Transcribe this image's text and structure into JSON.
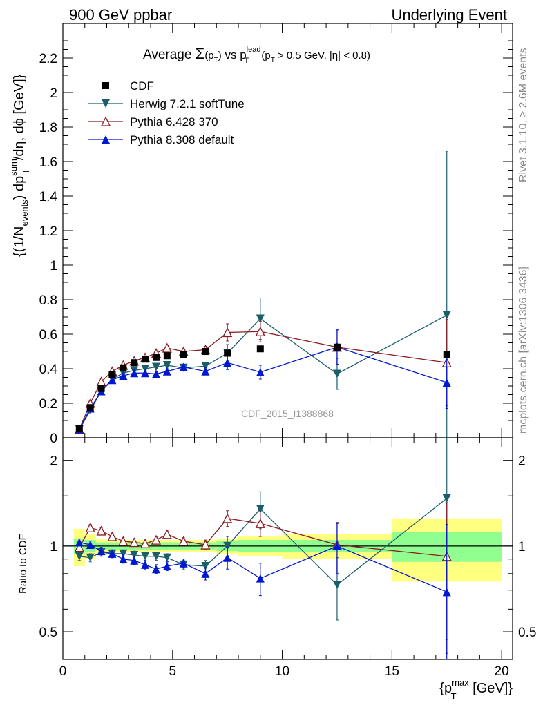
{
  "header": {
    "left": "900 GeV ppbar",
    "right": "Underlying Event"
  },
  "side_text": {
    "rivet": "Rivet 3.1.10, ≥ 2.6M events",
    "mcplots": "mcplots.cern.ch [arXiv:1306.3436]"
  },
  "plot_title": {
    "pre": "Average ",
    "sigma": "Σ",
    "pt_open": "(p",
    "pt_sub": "T",
    "pt_close": ")",
    "vs": " vs p",
    "lead_sup": "lead",
    "lead_sub": "T",
    "cut_open": " (p",
    "cut_sub": "T",
    "cut_rest": " > 0.5 GeV, |η| < 0.8)"
  },
  "analysis_id": "CDF_2015_I1388868",
  "ylabel_main": {
    "a": "{(1/N",
    "a_sub": "events",
    "b": ") dp",
    "b_sup": "sum",
    "b_sub": "T",
    "c": "/dη, dϕ [GeV]}"
  },
  "ylabel_ratio": "Ratio to CDF",
  "xlabel": {
    "a": "{p",
    "a_sup": "max",
    "a_sub": "T",
    "b": " [GeV]}"
  },
  "legend": [
    {
      "label": "CDF",
      "color": "#000000",
      "marker": "square"
    },
    {
      "label": "Herwig 7.2.1 softTune",
      "color": "#1b5e69",
      "marker": "triangle-down"
    },
    {
      "label": "Pythia 6.428 370",
      "color": "#8b1a22",
      "marker": "triangle-open"
    },
    {
      "label": "Pythia 8.308 default",
      "color": "#0019d0",
      "marker": "triangle-up"
    }
  ],
  "chart_data": {
    "type": "scatter",
    "x": [
      0.75,
      1.25,
      1.75,
      2.25,
      2.75,
      3.25,
      3.75,
      4.25,
      4.75,
      5.5,
      6.5,
      7.5,
      9.0,
      12.5,
      17.5
    ],
    "xlim": [
      0,
      20.5
    ],
    "x_ticks": [
      0,
      5,
      10,
      15,
      20
    ],
    "main": {
      "ylim": [
        0,
        2.4
      ],
      "y_ticks": [
        0,
        0.2,
        0.4,
        0.6,
        0.8,
        1,
        1.2,
        1.4,
        1.6,
        1.8,
        2,
        2.2
      ],
      "y_tick_labels": [
        "0",
        "0.2",
        "0.4",
        "0.6",
        "0.8",
        "1",
        "1.2",
        "1.4",
        "1.6",
        "1.8",
        "2",
        "2.2"
      ]
    },
    "ratio": {
      "ylim": [
        0.4,
        2.4
      ],
      "log": true,
      "y_ticks": [
        0.5,
        1,
        2
      ],
      "y_tick_labels": [
        "0.5",
        "1",
        "2"
      ]
    },
    "data_series": {
      "name": "CDF",
      "x_err": [
        0.25,
        0.25,
        0.25,
        0.25,
        0.25,
        0.25,
        0.25,
        0.25,
        0.25,
        0.5,
        0.5,
        0.5,
        1.0,
        2.5,
        2.5
      ],
      "values": [
        0.052,
        0.175,
        0.285,
        0.365,
        0.405,
        0.435,
        0.455,
        0.465,
        0.475,
        0.48,
        0.5,
        0.49,
        0.515,
        0.525,
        0.48
      ],
      "ratio_band_inner": [
        0.06,
        0.05,
        0.03,
        0.03,
        0.03,
        0.03,
        0.03,
        0.03,
        0.03,
        0.03,
        0.03,
        0.04,
        0.05,
        0.05,
        0.12
      ],
      "ratio_band_outer": [
        0.15,
        0.1,
        0.06,
        0.05,
        0.05,
        0.05,
        0.05,
        0.05,
        0.05,
        0.05,
        0.05,
        0.06,
        0.08,
        0.1,
        0.25
      ]
    },
    "series": [
      {
        "name": "Herwig 7.2.1 softTune",
        "values": [
          0.048,
          0.158,
          0.27,
          0.34,
          0.375,
          0.39,
          0.4,
          0.41,
          0.42,
          0.405,
          0.415,
          0.49,
          0.69,
          0.37,
          0.71
        ],
        "errors": [
          0.005,
          0.01,
          0.01,
          0.01,
          0.01,
          0.012,
          0.012,
          0.012,
          0.012,
          0.015,
          0.02,
          0.05,
          0.12,
          0.09,
          0.95
        ],
        "ratio": [
          0.92,
          0.91,
          0.95,
          0.94,
          0.94,
          0.93,
          0.92,
          0.92,
          0.91,
          0.86,
          0.85,
          1.0,
          1.35,
          0.73,
          1.47
        ],
        "ratio_err": [
          0.03,
          0.03,
          0.03,
          0.03,
          0.03,
          0.03,
          0.03,
          0.03,
          0.03,
          0.03,
          0.04,
          0.08,
          0.2,
          0.18,
          1.0
        ]
      },
      {
        "name": "Pythia 6.428 370",
        "values": [
          0.05,
          0.2,
          0.325,
          0.385,
          0.42,
          0.445,
          0.465,
          0.49,
          0.52,
          0.5,
          0.51,
          0.61,
          0.615,
          0.525,
          0.435
        ],
        "errors": [
          0.005,
          0.01,
          0.01,
          0.01,
          0.01,
          0.012,
          0.012,
          0.012,
          0.015,
          0.015,
          0.02,
          0.05,
          0.06,
          0.1,
          0.25
        ],
        "ratio": [
          0.99,
          1.16,
          1.13,
          1.08,
          1.04,
          1.03,
          1.02,
          1.05,
          1.1,
          1.04,
          1.01,
          1.25,
          1.2,
          1.01,
          0.92
        ],
        "ratio_err": [
          0.03,
          0.03,
          0.03,
          0.03,
          0.03,
          0.03,
          0.03,
          0.03,
          0.03,
          0.03,
          0.04,
          0.08,
          0.12,
          0.2,
          0.5
        ]
      },
      {
        "name": "Pythia 8.308 default",
        "values": [
          0.05,
          0.17,
          0.27,
          0.335,
          0.36,
          0.375,
          0.375,
          0.37,
          0.385,
          0.41,
          0.385,
          0.435,
          0.38,
          0.525,
          0.32
        ],
        "errors": [
          0.005,
          0.01,
          0.01,
          0.01,
          0.01,
          0.012,
          0.012,
          0.012,
          0.015,
          0.015,
          0.02,
          0.04,
          0.04,
          0.1,
          0.15
        ],
        "ratio": [
          1.03,
          1.01,
          0.96,
          0.94,
          0.9,
          0.89,
          0.86,
          0.83,
          0.85,
          0.87,
          0.8,
          0.91,
          0.77,
          1.0,
          0.69
        ],
        "ratio_err": [
          0.03,
          0.03,
          0.03,
          0.03,
          0.03,
          0.03,
          0.03,
          0.03,
          0.03,
          0.03,
          0.04,
          0.08,
          0.1,
          0.2,
          0.5
        ]
      }
    ]
  }
}
